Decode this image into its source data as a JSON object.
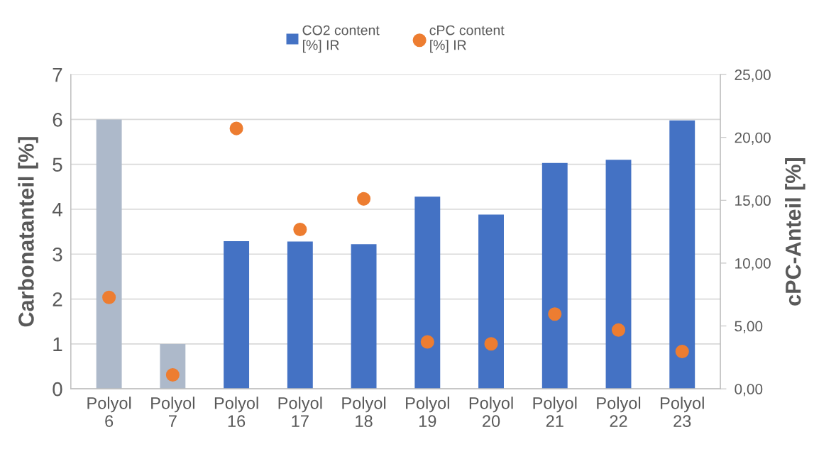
{
  "chart_data": {
    "type": "bar",
    "categories": [
      "Polyol\n6",
      "Polyol\n7",
      "Polyol\n16",
      "Polyol\n17",
      "Polyol\n18",
      "Polyol\n19",
      "Polyol\n20",
      "Polyol\n21",
      "Polyol\n22",
      "Polyol\n23"
    ],
    "ylabel": "Carbonatanteil [%]",
    "y2label": "cPC-Anteil [%]",
    "series": [
      {
        "name": "CO2 content\n[%] IR",
        "color": "#4472c4",
        "colors": [
          "#adb9ca",
          "#adb9ca",
          "#4472c4",
          "#4472c4",
          "#4472c4",
          "#4472c4",
          "#4472c4",
          "#4472c4",
          "#4472c4",
          "#4472c4"
        ],
        "values": [
          6.0,
          1.0,
          3.29,
          3.28,
          3.22,
          4.28,
          3.88,
          5.03,
          5.1,
          5.98
        ]
      },
      {
        "name": "cPC content\n[%] IR",
        "type": "scatter",
        "axis": "y2",
        "color": "#ed7d31",
        "marker": "circle",
        "values": [
          7.27,
          1.11,
          20.71,
          12.68,
          15.11,
          3.73,
          3.58,
          5.95,
          4.68,
          2.97
        ]
      }
    ],
    "ylim": [
      0,
      7
    ],
    "yticks": [
      0,
      1,
      2,
      3,
      4,
      5,
      6,
      7
    ],
    "y2lim": [
      0,
      25
    ],
    "y2ticks": [
      {
        "value": 0,
        "label": "0,00"
      },
      {
        "value": 5,
        "label": "5,00"
      },
      {
        "value": 10,
        "label": "10,00"
      },
      {
        "value": 15,
        "label": "15,00"
      },
      {
        "value": 20,
        "label": "20,00"
      },
      {
        "value": 25,
        "label": "25,00"
      }
    ],
    "grid": "y",
    "legend": "top"
  }
}
